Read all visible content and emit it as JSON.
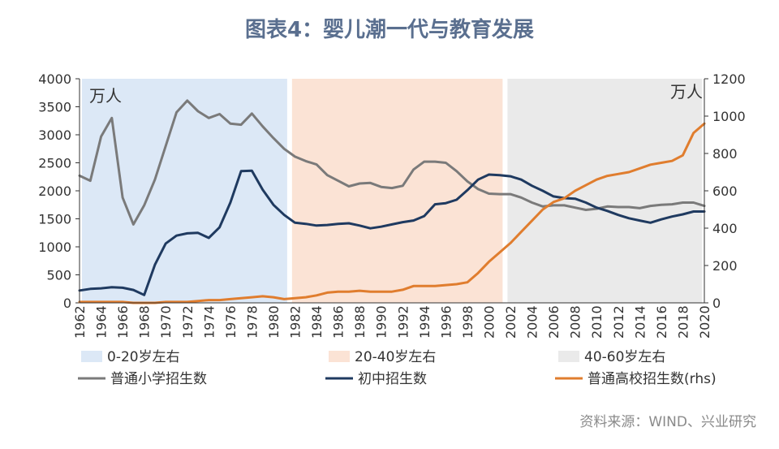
{
  "title": "图表4：婴儿潮一代与教育发展",
  "source": "资料来源：WIND、兴业研究",
  "chart_data": {
    "type": "line",
    "y_left_unit": "万人",
    "y_right_unit": "万人",
    "ylim_left": [
      0,
      4000
    ],
    "ylim_right": [
      0,
      1200
    ],
    "y_left_ticks": [
      "0",
      "500",
      "1000",
      "1500",
      "2000",
      "2500",
      "3000",
      "3500",
      "4000"
    ],
    "y_right_ticks": [
      "0",
      "200",
      "400",
      "600",
      "800",
      "1000",
      "1200"
    ],
    "x_tick_labels": [
      "1962",
      "1964",
      "1966",
      "1968",
      "1970",
      "1972",
      "1974",
      "1976",
      "1978",
      "1980",
      "1982",
      "1984",
      "1986",
      "1988",
      "1990",
      "1992",
      "1994",
      "1996",
      "1998",
      "2000",
      "2002",
      "2004",
      "2006",
      "2008",
      "2010",
      "2012",
      "2014",
      "2016",
      "2018",
      "2020"
    ],
    "years": [
      1962,
      1963,
      1964,
      1965,
      1966,
      1967,
      1968,
      1969,
      1970,
      1971,
      1972,
      1973,
      1974,
      1975,
      1976,
      1977,
      1978,
      1979,
      1980,
      1981,
      1982,
      1983,
      1984,
      1985,
      1986,
      1987,
      1988,
      1989,
      1990,
      1991,
      1992,
      1993,
      1994,
      1995,
      1996,
      1997,
      1998,
      1999,
      2000,
      2001,
      2002,
      2003,
      2004,
      2005,
      2006,
      2007,
      2008,
      2009,
      2010,
      2011,
      2012,
      2013,
      2014,
      2015,
      2016,
      2017,
      2018,
      2019,
      2020
    ],
    "bands": [
      {
        "label": "0-20岁左右",
        "from": 1962,
        "to": 1981,
        "color": "#dce8f6"
      },
      {
        "label": "20-40岁左右",
        "from": 1982,
        "to": 2001,
        "color": "#fbe3d5"
      },
      {
        "label": "40-60岁左右",
        "from": 2002,
        "to": 2020,
        "color": "#eaeaea"
      }
    ],
    "series": [
      {
        "name": "普通小学招生数",
        "axis": "left",
        "color": "#7a7a7a",
        "values": [
          2270,
          2180,
          2970,
          3300,
          1880,
          1400,
          1740,
          2200,
          2800,
          3400,
          3610,
          3420,
          3300,
          3370,
          3200,
          3180,
          3380,
          3150,
          2940,
          2750,
          2610,
          2530,
          2470,
          2280,
          2180,
          2080,
          2130,
          2140,
          2070,
          2050,
          2090,
          2380,
          2520,
          2520,
          2500,
          2350,
          2170,
          2030,
          1950,
          1940,
          1940,
          1880,
          1790,
          1720,
          1740,
          1740,
          1700,
          1660,
          1680,
          1720,
          1710,
          1710,
          1690,
          1730,
          1750,
          1760,
          1790,
          1790,
          1730
        ]
      },
      {
        "name": "初中招生数",
        "axis": "left",
        "color": "#1f3a60",
        "values": [
          220,
          250,
          260,
          280,
          270,
          230,
          140,
          680,
          1060,
          1200,
          1240,
          1250,
          1160,
          1350,
          1790,
          2350,
          2360,
          2020,
          1750,
          1570,
          1430,
          1410,
          1380,
          1390,
          1410,
          1420,
          1380,
          1330,
          1360,
          1400,
          1440,
          1470,
          1550,
          1760,
          1780,
          1840,
          2010,
          2200,
          2290,
          2280,
          2260,
          2200,
          2090,
          2000,
          1900,
          1870,
          1860,
          1790,
          1700,
          1640,
          1570,
          1510,
          1470,
          1430,
          1490,
          1540,
          1580,
          1630,
          1630
        ]
      },
      {
        "name": "普通高校招生数(rhs)",
        "axis": "right",
        "color": "#e07d2e",
        "values": [
          5,
          5,
          5,
          5,
          5,
          0,
          0,
          0,
          5,
          5,
          5,
          10,
          15,
          15,
          20,
          25,
          30,
          35,
          30,
          20,
          25,
          30,
          40,
          55,
          60,
          60,
          65,
          60,
          60,
          60,
          70,
          90,
          90,
          90,
          95,
          100,
          110,
          160,
          220,
          270,
          320,
          380,
          440,
          500,
          540,
          560,
          600,
          630,
          660,
          680,
          690,
          700,
          720,
          740,
          750,
          760,
          790,
          910,
          960
        ]
      }
    ]
  }
}
